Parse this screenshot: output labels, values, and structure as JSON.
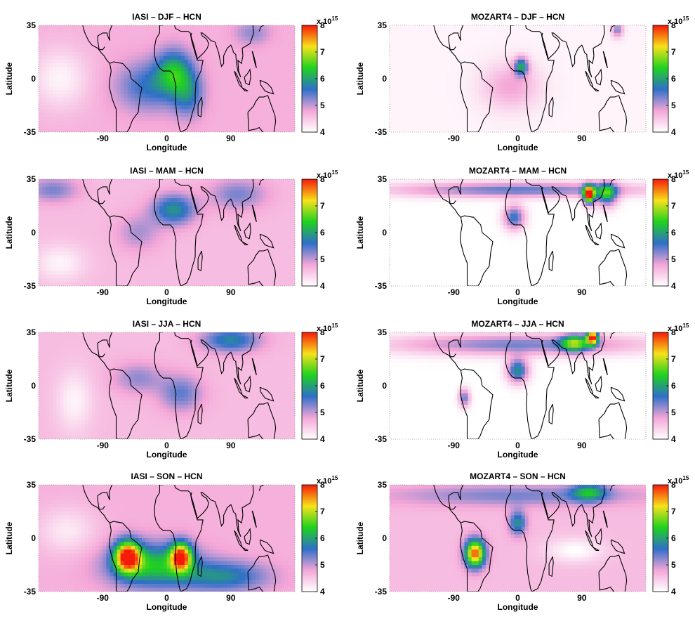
{
  "figure": {
    "colorbar_exponent_base": "x 10",
    "colorbar_exponent_power": "15",
    "colormap": [
      "#ffffff",
      "#f4a6d7",
      "#2f6fc9",
      "#1fd21f",
      "#f7e21a",
      "#f51a0a"
    ]
  },
  "chart_data": [
    {
      "type": "heatmap",
      "title": "IASI – DJF – HCN",
      "xlabel": "Longitude",
      "ylabel": "Latitude",
      "xlim": [
        -180,
        180
      ],
      "ylim": [
        -35,
        35
      ],
      "xticks": [
        -90,
        0,
        90
      ],
      "yticks": [
        -35,
        0,
        35
      ],
      "colorbar": {
        "min": 4,
        "max": 8,
        "ticks": [
          4,
          5,
          6,
          7,
          8
        ]
      },
      "background": 4.7,
      "blobs": [
        {
          "lon": -25,
          "lat": -5,
          "value": 5.6,
          "spread_lon": 45,
          "spread_lat": 16
        },
        {
          "lon": 10,
          "lat": 5,
          "value": 6.0,
          "spread_lon": 25,
          "spread_lat": 14
        },
        {
          "lon": 30,
          "lat": -10,
          "value": 5.6,
          "spread_lon": 22,
          "spread_lat": 15
        },
        {
          "lon": -150,
          "lat": 0,
          "value": 4.1,
          "spread_lon": 40,
          "spread_lat": 20
        },
        {
          "lon": 120,
          "lat": 30,
          "value": 5.2,
          "spread_lon": 25,
          "spread_lat": 8
        }
      ]
    },
    {
      "type": "heatmap",
      "title": "MOZART4 – DJF – HCN",
      "xlabel": "Longitude",
      "ylabel": "Latitude",
      "xlim": [
        -180,
        180
      ],
      "ylim": [
        -35,
        35
      ],
      "xticks": [
        -90,
        0,
        90
      ],
      "yticks": [
        -35,
        0,
        35
      ],
      "colorbar": {
        "min": 4,
        "max": 8,
        "ticks": [
          4,
          5,
          6,
          7,
          8
        ]
      },
      "background": 4.1,
      "blobs": [
        {
          "lon": 5,
          "lat": 8,
          "value": 5.9,
          "spread_lon": 10,
          "spread_lat": 6
        },
        {
          "lon": -10,
          "lat": -5,
          "value": 4.8,
          "spread_lon": 40,
          "spread_lat": 15
        },
        {
          "lon": 140,
          "lat": 32,
          "value": 5.3,
          "spread_lon": 8,
          "spread_lat": 5
        }
      ]
    },
    {
      "type": "heatmap",
      "title": "IASI – MAM – HCN",
      "xlabel": "Longitude",
      "ylabel": "Latitude",
      "xlim": [
        -180,
        180
      ],
      "ylim": [
        -35,
        35
      ],
      "xticks": [
        -90,
        0,
        90
      ],
      "yticks": [
        -35,
        0,
        35
      ],
      "colorbar": {
        "min": 4,
        "max": 8,
        "ticks": [
          4,
          5,
          6,
          7,
          8
        ]
      },
      "background": 4.6,
      "blobs": [
        {
          "lon": 10,
          "lat": 15,
          "value": 5.9,
          "spread_lon": 30,
          "spread_lat": 10
        },
        {
          "lon": -160,
          "lat": 28,
          "value": 5.3,
          "spread_lon": 35,
          "spread_lat": 8
        },
        {
          "lon": 100,
          "lat": 25,
          "value": 5.3,
          "spread_lon": 40,
          "spread_lat": 10
        },
        {
          "lon": -40,
          "lat": 0,
          "value": 5.1,
          "spread_lon": 30,
          "spread_lat": 12
        },
        {
          "lon": -150,
          "lat": -20,
          "value": 4.1,
          "spread_lon": 35,
          "spread_lat": 12
        }
      ]
    },
    {
      "type": "heatmap",
      "title": "MOZART4 – MAM – HCN",
      "xlabel": "Longitude",
      "ylabel": "Latitude",
      "xlim": [
        -180,
        180
      ],
      "ylim": [
        -35,
        35
      ],
      "xticks": [
        -90,
        0,
        90
      ],
      "yticks": [
        -35,
        0,
        35
      ],
      "colorbar": {
        "min": 4,
        "max": 8,
        "ticks": [
          4,
          5,
          6,
          7,
          8
        ]
      },
      "background": 4.0,
      "blobs": [
        {
          "lon": 0,
          "lat": 28,
          "value": 5.4,
          "spread_lon": 180,
          "spread_lat": 5
        },
        {
          "lon": 100,
          "lat": 25,
          "value": 7.8,
          "spread_lon": 8,
          "spread_lat": 6
        },
        {
          "lon": 125,
          "lat": 25,
          "value": 6.0,
          "spread_lon": 15,
          "spread_lat": 8
        },
        {
          "lon": -5,
          "lat": 10,
          "value": 5.6,
          "spread_lon": 15,
          "spread_lat": 8
        }
      ]
    },
    {
      "type": "heatmap",
      "title": "IASI – JJA – HCN",
      "xlabel": "Longitude",
      "ylabel": "Latitude",
      "xlim": [
        -180,
        180
      ],
      "ylim": [
        -35,
        35
      ],
      "xticks": [
        -90,
        0,
        90
      ],
      "yticks": [
        -35,
        0,
        35
      ],
      "colorbar": {
        "min": 4,
        "max": 8,
        "ticks": [
          4,
          5,
          6,
          7,
          8
        ]
      },
      "background": 4.6,
      "blobs": [
        {
          "lon": 90,
          "lat": 30,
          "value": 5.8,
          "spread_lon": 40,
          "spread_lat": 8
        },
        {
          "lon": 20,
          "lat": -5,
          "value": 5.4,
          "spread_lon": 30,
          "spread_lat": 12
        },
        {
          "lon": -40,
          "lat": 5,
          "value": 5.2,
          "spread_lon": 35,
          "spread_lat": 10
        },
        {
          "lon": -130,
          "lat": -10,
          "value": 4.1,
          "spread_lon": 25,
          "spread_lat": 20
        }
      ]
    },
    {
      "type": "heatmap",
      "title": "MOZART4 – JJA – HCN",
      "xlabel": "Longitude",
      "ylabel": "Latitude",
      "xlim": [
        -180,
        180
      ],
      "ylim": [
        -35,
        35
      ],
      "xticks": [
        -90,
        0,
        90
      ],
      "yticks": [
        -35,
        0,
        35
      ],
      "colorbar": {
        "min": 4,
        "max": 8,
        "ticks": [
          4,
          5,
          6,
          7,
          8
        ]
      },
      "background": 4.0,
      "blobs": [
        {
          "lon": 0,
          "lat": 27,
          "value": 5.3,
          "spread_lon": 180,
          "spread_lat": 7
        },
        {
          "lon": 105,
          "lat": 32,
          "value": 7.5,
          "spread_lon": 8,
          "spread_lat": 5
        },
        {
          "lon": 80,
          "lat": 28,
          "value": 6.0,
          "spread_lon": 20,
          "spread_lat": 6
        },
        {
          "lon": 0,
          "lat": 10,
          "value": 5.9,
          "spread_lon": 15,
          "spread_lat": 8
        },
        {
          "lon": -75,
          "lat": -8,
          "value": 5.4,
          "spread_lon": 8,
          "spread_lat": 6
        }
      ]
    },
    {
      "type": "heatmap",
      "title": "IASI – SON – HCN",
      "xlabel": "Longitude",
      "ylabel": "Latitude",
      "xlim": [
        -180,
        180
      ],
      "ylim": [
        -35,
        35
      ],
      "xticks": [
        -90,
        0,
        90
      ],
      "yticks": [
        -35,
        0,
        35
      ],
      "colorbar": {
        "min": 4,
        "max": 8,
        "ticks": [
          4,
          5,
          6,
          7,
          8
        ]
      },
      "background": 4.7,
      "blobs": [
        {
          "lon": -55,
          "lat": -12,
          "value": 7.8,
          "spread_lon": 18,
          "spread_lat": 10
        },
        {
          "lon": 20,
          "lat": -12,
          "value": 7.6,
          "spread_lon": 15,
          "spread_lat": 9
        },
        {
          "lon": -20,
          "lat": -18,
          "value": 6.3,
          "spread_lon": 60,
          "spread_lat": 14
        },
        {
          "lon": 80,
          "lat": -25,
          "value": 5.8,
          "spread_lon": 60,
          "spread_lat": 10
        },
        {
          "lon": -140,
          "lat": 5,
          "value": 4.2,
          "spread_lon": 40,
          "spread_lat": 15
        }
      ]
    },
    {
      "type": "heatmap",
      "title": "MOZART4 – SON – HCN",
      "xlabel": "Longitude",
      "ylabel": "Latitude",
      "xlim": [
        -180,
        180
      ],
      "ylim": [
        -35,
        35
      ],
      "xticks": [
        -90,
        0,
        90
      ],
      "yticks": [
        -35,
        0,
        35
      ],
      "colorbar": {
        "min": 4,
        "max": 8,
        "ticks": [
          4,
          5,
          6,
          7,
          8
        ]
      },
      "background": 4.6,
      "blobs": [
        {
          "lon": -60,
          "lat": -10,
          "value": 7.8,
          "spread_lon": 14,
          "spread_lat": 9
        },
        {
          "lon": 0,
          "lat": 28,
          "value": 5.3,
          "spread_lon": 180,
          "spread_lat": 7
        },
        {
          "lon": 0,
          "lat": 10,
          "value": 5.9,
          "spread_lon": 12,
          "spread_lat": 8
        },
        {
          "lon": 100,
          "lat": 30,
          "value": 5.9,
          "spread_lon": 25,
          "spread_lat": 6
        },
        {
          "lon": 80,
          "lat": -8,
          "value": 4.0,
          "spread_lon": 40,
          "spread_lat": 8
        }
      ]
    }
  ]
}
